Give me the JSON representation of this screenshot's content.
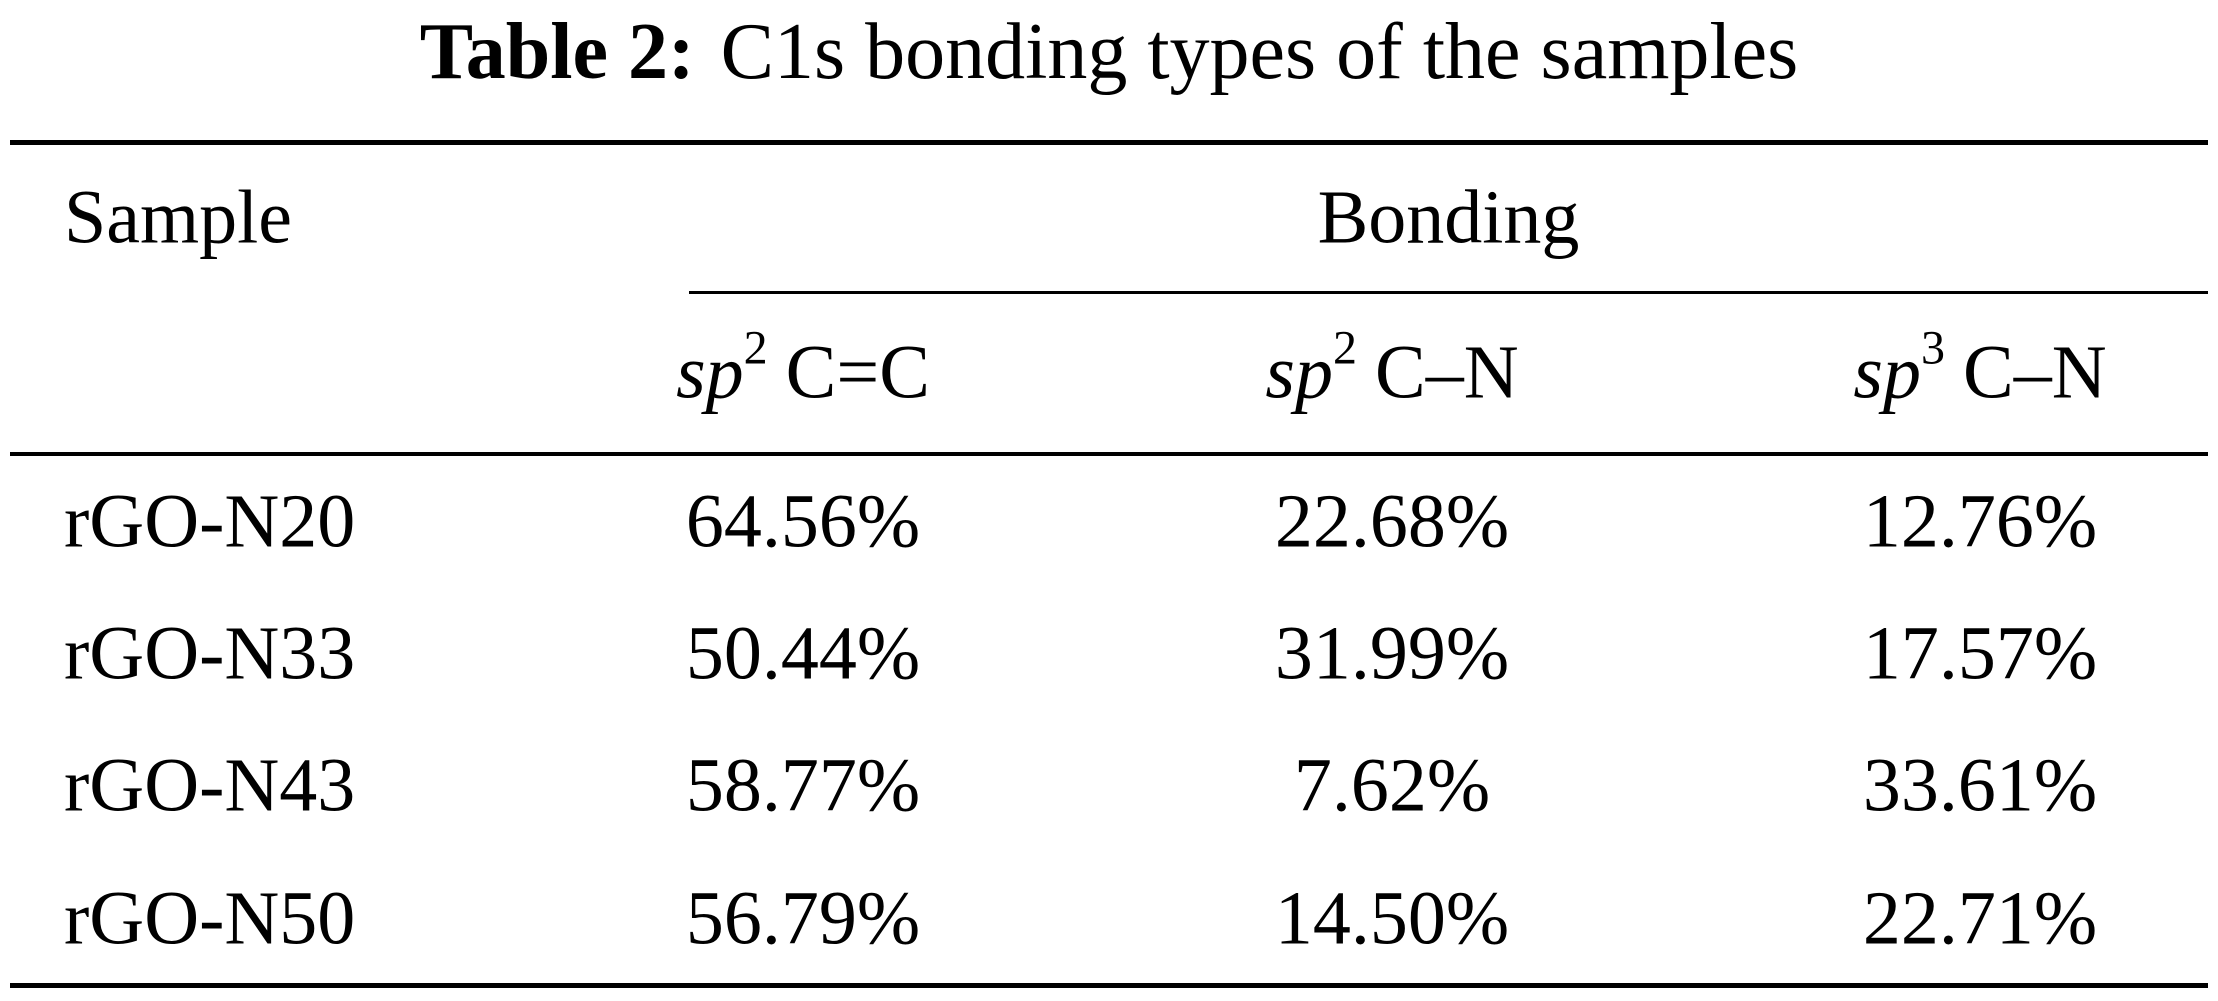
{
  "title": {
    "label": "Table 2:",
    "text": "C1s bonding types of the samples"
  },
  "table": {
    "sample_header": "Sample",
    "bonding_header": "Bonding",
    "sub_headers": [
      {
        "sp": "sp",
        "sup": "2",
        "bond": "C=C"
      },
      {
        "sp": "sp",
        "sup": "2",
        "bond": "C–N"
      },
      {
        "sp": "sp",
        "sup": "3",
        "bond": "C–N"
      }
    ],
    "rows": [
      {
        "sample": "rGO-N20",
        "v1": "64.56%",
        "v2": "22.68%",
        "v3": "12.76%"
      },
      {
        "sample": "rGO-N33",
        "v1": "50.44%",
        "v2": "31.99%",
        "v3": "17.57%"
      },
      {
        "sample": "rGO-N43",
        "v1": "58.77%",
        "v2": "7.62%",
        "v3": "33.61%"
      },
      {
        "sample": "rGO-N50",
        "v1": "56.79%",
        "v2": "14.50%",
        "v3": "22.71%"
      }
    ]
  },
  "chart_data": {
    "type": "table",
    "title": "Table 2: C1s bonding types of the samples",
    "columns": [
      "Sample",
      "sp2 C=C",
      "sp2 C–N",
      "sp3 C–N"
    ],
    "rows": [
      [
        "rGO-N20",
        "64.56%",
        "22.68%",
        "12.76%"
      ],
      [
        "rGO-N33",
        "50.44%",
        "31.99%",
        "17.57%"
      ],
      [
        "rGO-N43",
        "58.77%",
        "7.62%",
        "33.61%"
      ],
      [
        "rGO-N50",
        "56.79%",
        "14.50%",
        "22.71%"
      ]
    ]
  }
}
